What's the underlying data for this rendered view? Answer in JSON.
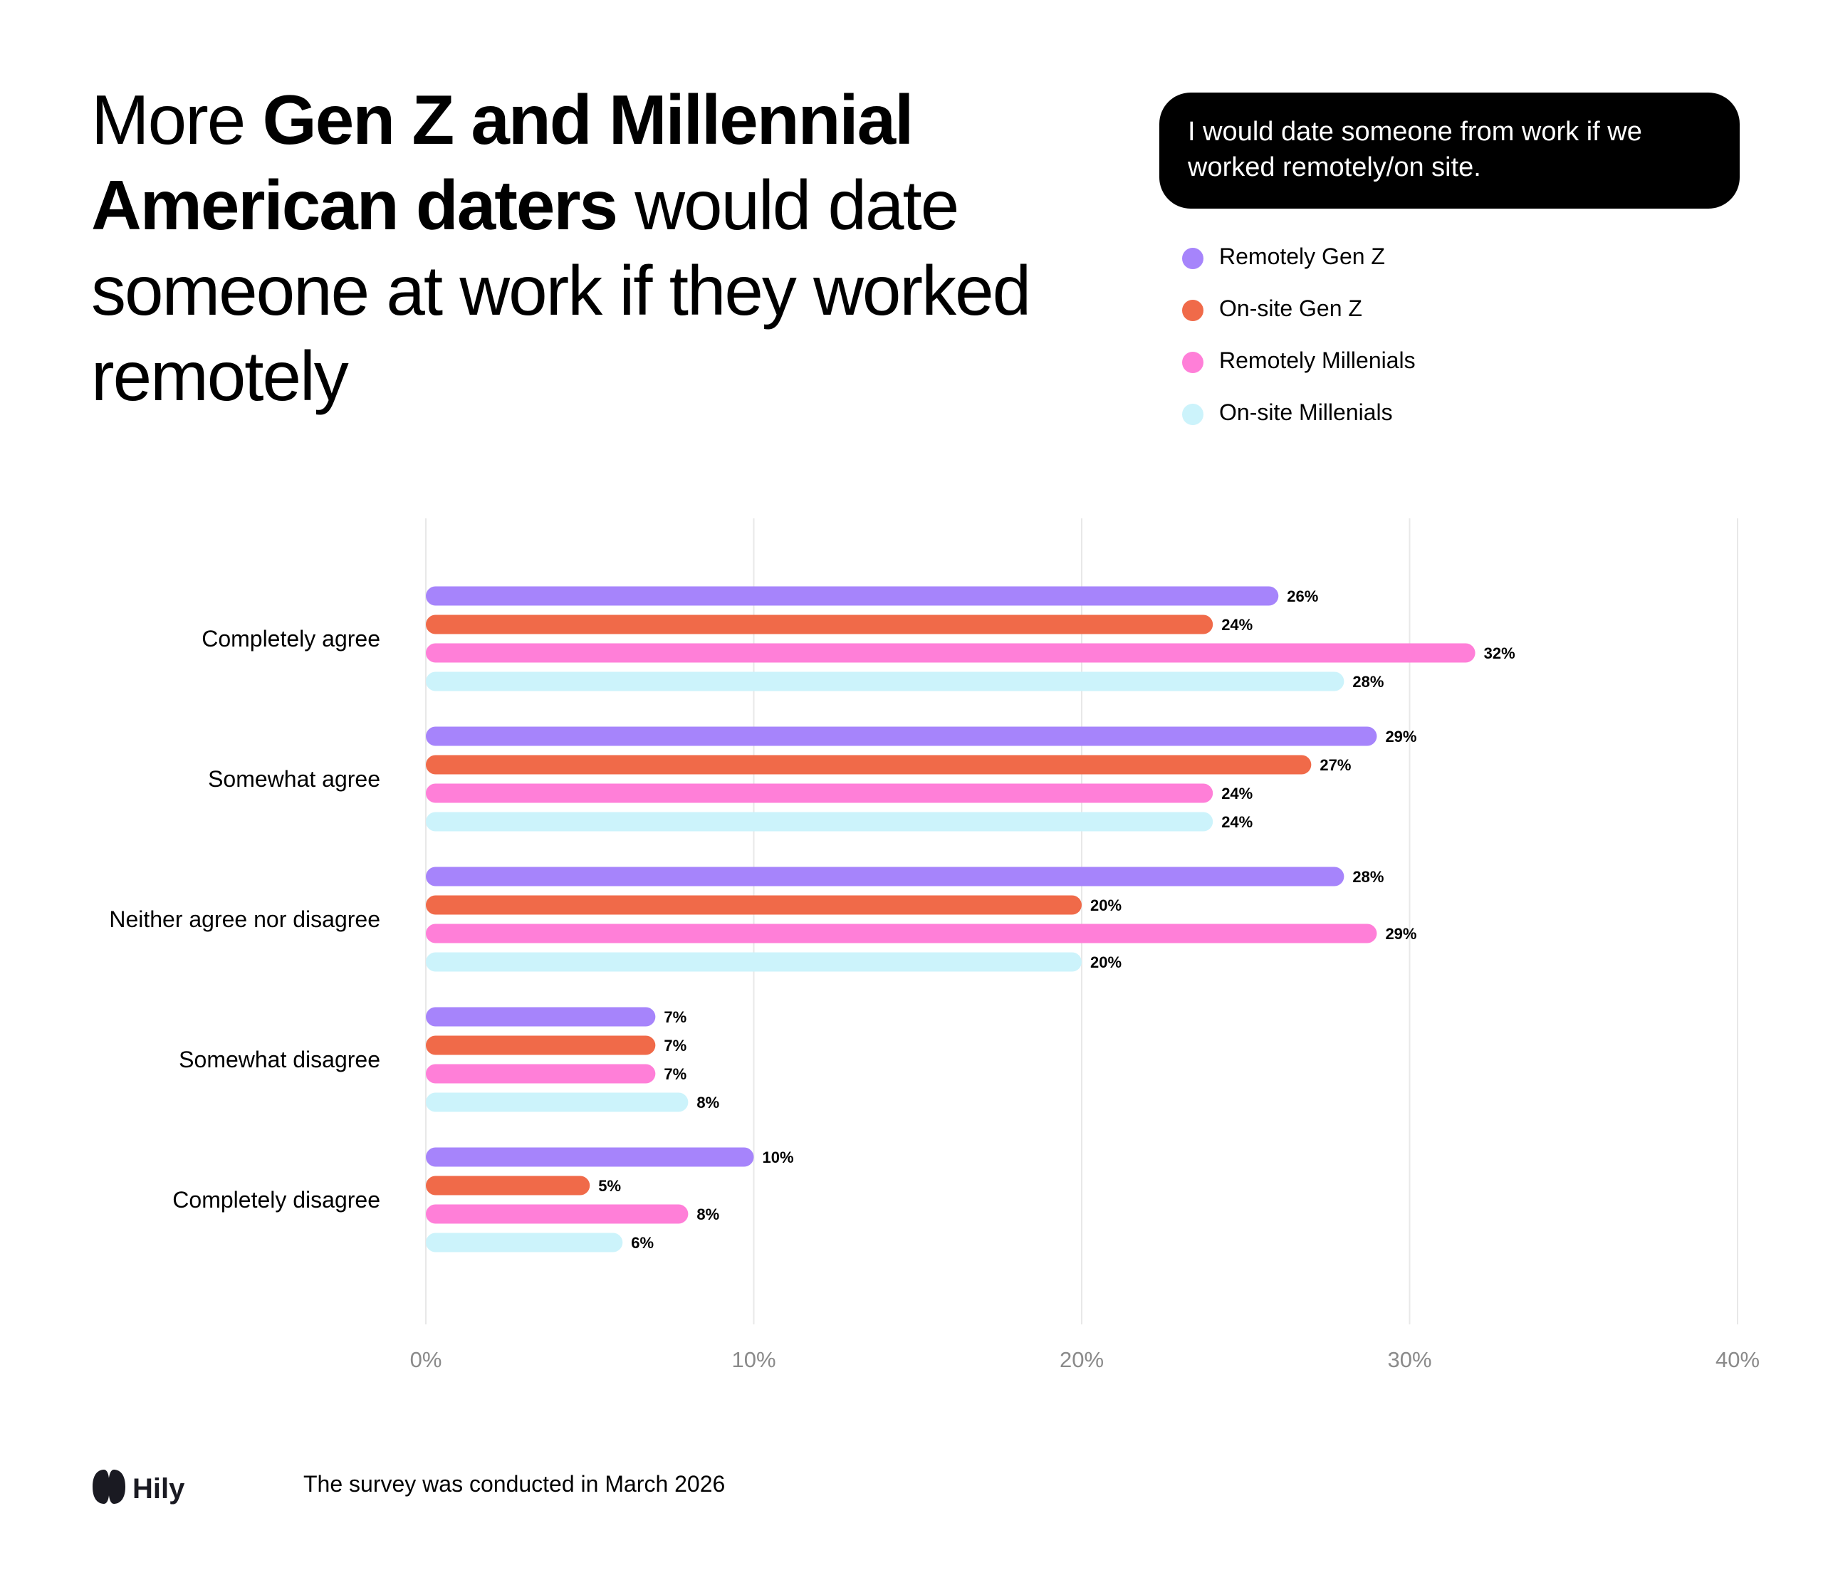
{
  "title": {
    "part1": "More ",
    "bold": "Gen Z and Millennial American daters",
    "part2": " would date someone at work if they worked remotely"
  },
  "question": "I would date someone from work if we worked remotely/on site.",
  "footer": {
    "brand": "Hily",
    "note": "The survey was conducted in March 2026"
  },
  "chart_data": {
    "type": "bar",
    "orientation": "horizontal",
    "categories": [
      "Completely agree",
      "Somewhat agree",
      "Neither agree nor disagree",
      "Somewhat disagree",
      "Completely disagree"
    ],
    "series": [
      {
        "name": "Remotely Gen Z",
        "color": "#a684fb",
        "values": [
          26,
          29,
          28,
          7,
          10
        ]
      },
      {
        "name": "On-site Gen Z",
        "color": "#f06a49",
        "values": [
          24,
          27,
          20,
          7,
          5
        ]
      },
      {
        "name": "Remotely Millenials",
        "color": "#ff7fd8",
        "values": [
          32,
          24,
          29,
          7,
          8
        ]
      },
      {
        "name": "On-site Millenials",
        "color": "#ccf3fb",
        "values": [
          28,
          24,
          20,
          8,
          6
        ]
      }
    ],
    "xlim": [
      0,
      40
    ],
    "xticks": [
      0,
      10,
      20,
      30,
      40
    ],
    "tick_format": "%",
    "value_labels": true,
    "grid": "vertical",
    "legend": "top-right"
  }
}
